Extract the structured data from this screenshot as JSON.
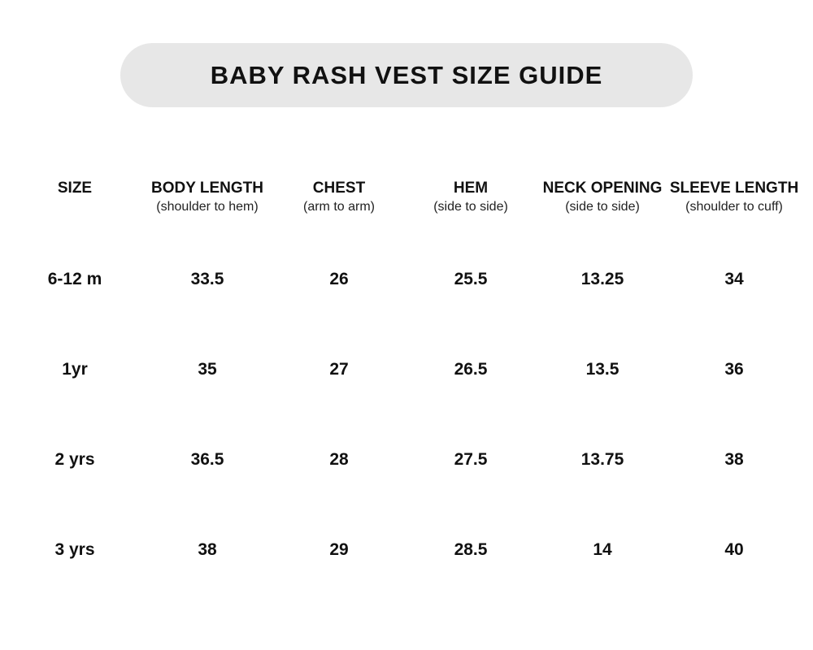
{
  "title": "BABY RASH VEST SIZE GUIDE",
  "columns": [
    {
      "title": "SIZE",
      "subtitle": ""
    },
    {
      "title": "BODY LENGTH",
      "subtitle": "(shoulder to hem)"
    },
    {
      "title": "CHEST",
      "subtitle": "(arm to arm)"
    },
    {
      "title": "HEM",
      "subtitle": "(side to side)"
    },
    {
      "title": "NECK OPENING",
      "subtitle": "(side to side)"
    },
    {
      "title": "SLEEVE LENGTH",
      "subtitle": "(shoulder to cuff)"
    }
  ],
  "rows": [
    [
      "6-12 m",
      "33.5",
      "26",
      "25.5",
      "13.25",
      "34"
    ],
    [
      "1yr",
      "35",
      "27",
      "26.5",
      "13.5",
      "36"
    ],
    [
      "2 yrs",
      "36.5",
      "28",
      "27.5",
      "13.75",
      "38"
    ],
    [
      "3 yrs",
      "38",
      "29",
      "28.5",
      "14",
      "40"
    ]
  ],
  "colors": {
    "title_pill": "#e7e7e7",
    "text": "#111111"
  }
}
